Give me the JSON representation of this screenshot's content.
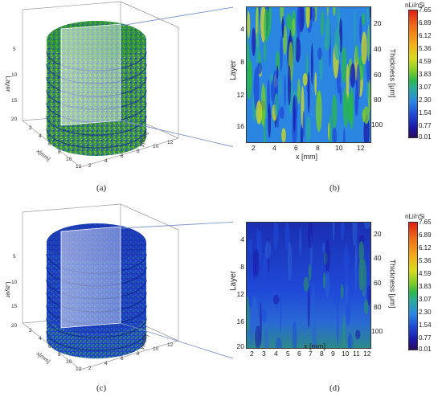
{
  "panels": {
    "a": {
      "label": "(a)",
      "z_label": "Layer",
      "x_label": "x[mm]",
      "y_label": "y[mm]",
      "z_ticks": [
        "5",
        "10",
        "15",
        "20"
      ],
      "x_ticks": [
        "2",
        "4",
        "6",
        "8",
        "10",
        "12"
      ],
      "y_ticks": [
        "2",
        "4",
        "6",
        "8",
        "10",
        "12"
      ]
    },
    "b": {
      "label": "(b)",
      "ylabel": "Layer",
      "xlabel": "x [mm]",
      "y2label": "Thickness [μm]",
      "y_ticks": [
        "4",
        "8",
        "12",
        "16"
      ],
      "x_ticks": [
        "2",
        "4",
        "6",
        "8",
        "10",
        "12"
      ],
      "y2_ticks": [
        "20",
        "40",
        "60",
        "80",
        "100"
      ],
      "colorbar_title": "nLi/nSi",
      "colorbar_ticks": [
        "7.65",
        "6.89",
        "6.12",
        "5.36",
        "4.59",
        "3.83",
        "3.07",
        "2.30",
        "1.54",
        "0.77",
        "0.01"
      ]
    },
    "c": {
      "label": "(c)",
      "z_label": "Layer",
      "x_label": "x[mm]",
      "y_label": "y[mm]",
      "z_ticks": [
        "5",
        "10",
        "15",
        "20"
      ],
      "x_ticks": [
        "2",
        "4",
        "6",
        "8",
        "10",
        "12"
      ],
      "y_ticks": [
        "2",
        "4",
        "6",
        "8",
        "10",
        "12"
      ]
    },
    "d": {
      "label": "(d)",
      "ylabel": "Layer",
      "xlabel": "x [mm]",
      "y2label": "Thickness [μm]",
      "y_ticks": [
        "4",
        "8",
        "12",
        "16",
        "20"
      ],
      "x_ticks": [
        "2",
        "3",
        "4",
        "5",
        "6",
        "7",
        "8",
        "9",
        "10",
        "11",
        "12"
      ],
      "y2_ticks": [
        "20",
        "40",
        "60",
        "80",
        "100"
      ],
      "colorbar_title": "nLi/nSi",
      "colorbar_ticks": [
        "7.65",
        "6.89",
        "6.12",
        "5.36",
        "4.59",
        "3.83",
        "3.07",
        "2.30",
        "1.54",
        "0.77",
        "0.01"
      ]
    }
  },
  "colors": {
    "colormap": [
      "#2a0a5e",
      "#1a1aa8",
      "#1f4ad8",
      "#2a86e0",
      "#2aa8a0",
      "#2bb84a",
      "#7ccc2a",
      "#d8dc1e",
      "#f2b41a",
      "#f06a18",
      "#e01e14"
    ],
    "connector": "#7f97c9"
  }
}
